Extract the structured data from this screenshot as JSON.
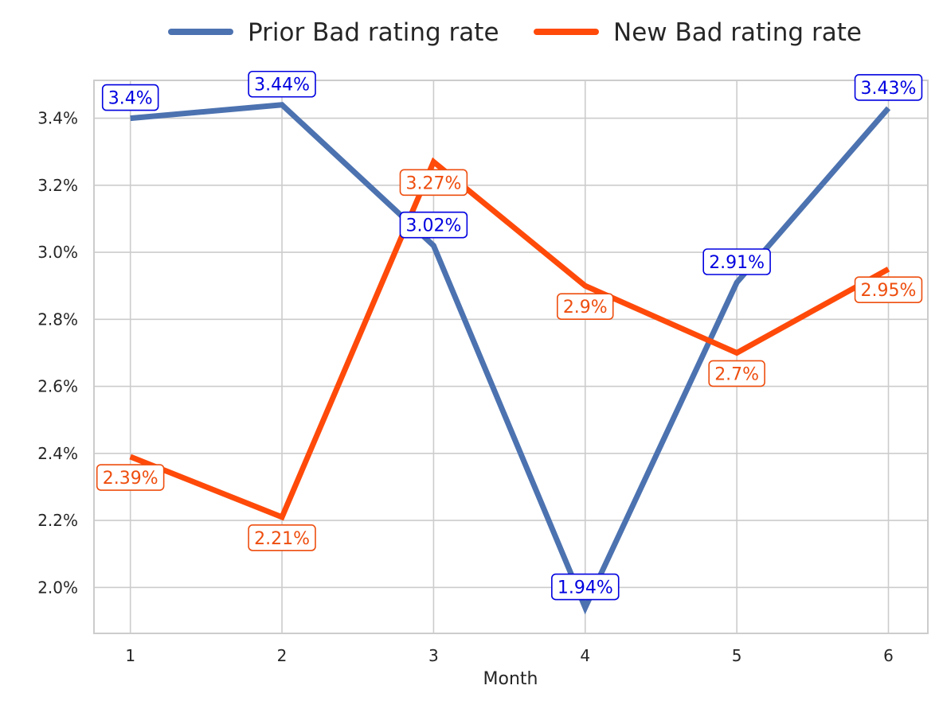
{
  "chart_data": {
    "type": "line",
    "x": [
      1,
      2,
      3,
      4,
      5,
      6
    ],
    "xlabel": "Month",
    "ylabel": "",
    "xlim": [
      0.76,
      6.26
    ],
    "ylim": [
      1.863,
      3.513
    ],
    "yticks": [
      2.0,
      2.2,
      2.4,
      2.6,
      2.8,
      3.0,
      3.2,
      3.4
    ],
    "ytick_labels": [
      "2.0%",
      "2.2%",
      "2.4%",
      "2.6%",
      "2.8%",
      "3.0%",
      "3.2%",
      "3.4%"
    ],
    "xtick_labels": [
      "1",
      "2",
      "3",
      "4",
      "5",
      "6"
    ],
    "grid": true,
    "legend_position": "top-center",
    "series": [
      {
        "name": "Prior Bad rating rate",
        "color": "#4c72b0",
        "label_color": "#0000e0",
        "values": [
          3.4,
          3.44,
          3.02,
          1.94,
          2.91,
          3.43
        ],
        "labels": [
          "3.4%",
          "3.44%",
          "3.02%",
          "1.94%",
          "2.91%",
          "3.43%"
        ],
        "label_side": [
          "above",
          "above",
          "above",
          "above",
          "above",
          "above"
        ]
      },
      {
        "name": "New Bad rating rate",
        "color": "#ff4a0a",
        "label_color": "#ee4e0f",
        "values": [
          2.39,
          2.21,
          3.27,
          2.9,
          2.7,
          2.95
        ],
        "labels": [
          "2.39%",
          "2.21%",
          "3.27%",
          "2.9%",
          "2.7%",
          "2.95%"
        ],
        "label_side": [
          "below",
          "below",
          "below",
          "below",
          "below",
          "below"
        ]
      }
    ]
  }
}
